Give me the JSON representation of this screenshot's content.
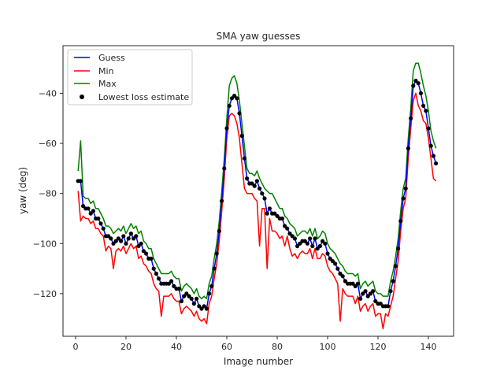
{
  "chart_data": {
    "type": "line",
    "title": "SMA yaw guesses",
    "xlabel": "Image number",
    "ylabel": "yaw (deg)",
    "xlim": [
      -5,
      150
    ],
    "ylim": [
      -137,
      -21
    ],
    "x_ticks": [
      0,
      20,
      40,
      60,
      80,
      100,
      120,
      140
    ],
    "y_ticks": [
      -120,
      -100,
      -80,
      -60,
      -40
    ],
    "x_tick_labels": [
      "0",
      "20",
      "40",
      "60",
      "80",
      "100",
      "120",
      "140"
    ],
    "y_tick_labels": [
      "−120",
      "−100",
      "−80",
      "−60",
      "−40"
    ],
    "grid": false,
    "legend_position": "top-left",
    "x": [
      1,
      2,
      3,
      4,
      5,
      6,
      7,
      8,
      9,
      10,
      11,
      12,
      13,
      14,
      15,
      16,
      17,
      18,
      19,
      20,
      21,
      22,
      23,
      24,
      25,
      26,
      27,
      28,
      29,
      30,
      31,
      32,
      33,
      34,
      35,
      36,
      37,
      38,
      39,
      40,
      41,
      42,
      43,
      44,
      45,
      46,
      47,
      48,
      49,
      50,
      51,
      52,
      53,
      54,
      55,
      56,
      57,
      58,
      59,
      60,
      61,
      62,
      63,
      64,
      65,
      66,
      67,
      68,
      69,
      70,
      71,
      72,
      73,
      74,
      75,
      76,
      77,
      78,
      79,
      80,
      81,
      82,
      83,
      84,
      85,
      86,
      87,
      88,
      89,
      90,
      91,
      92,
      93,
      94,
      95,
      96,
      97,
      98,
      99,
      100,
      101,
      102,
      103,
      104,
      105,
      106,
      107,
      108,
      109,
      110,
      111,
      112,
      113,
      114,
      115,
      116,
      117,
      118,
      119,
      120,
      121,
      122,
      123,
      124,
      125,
      126,
      127,
      128,
      129,
      130,
      131,
      132,
      133,
      134,
      135,
      136,
      137,
      138,
      139,
      140,
      141,
      142,
      143
    ],
    "series": [
      {
        "name": "Guess",
        "color": "#0000ff",
        "kind": "line",
        "values": [
          -75,
          -75,
          -85,
          -86,
          -86,
          -88,
          -87,
          -90,
          -90,
          -92,
          -94,
          -97,
          -97,
          -98,
          -100,
          -99,
          -98,
          -99,
          -97,
          -100,
          -98,
          -96,
          -98,
          -97,
          -101,
          -100,
          -103,
          -104,
          -106,
          -106,
          -110,
          -112,
          -114,
          -116,
          -116,
          -116,
          -116,
          -115,
          -117,
          -118,
          -118,
          -123,
          -121,
          -120,
          -121,
          -122,
          -124,
          -122,
          -125,
          -126,
          -125,
          -126,
          -120,
          -117,
          -110,
          -104,
          -95,
          -83,
          -70,
          -54,
          -45,
          -42,
          -41,
          -42,
          -48,
          -57,
          -66,
          -74,
          -76,
          -76,
          -77,
          -75,
          -78,
          -80,
          -82,
          -88,
          -86,
          -88,
          -88,
          -89,
          -90,
          -90,
          -93,
          -94,
          -96,
          -97,
          -98,
          -101,
          -100,
          -99,
          -99,
          -100,
          -98,
          -101,
          -98,
          -102,
          -101,
          -99,
          -100,
          -104,
          -106,
          -107,
          -108,
          -110,
          -112,
          -113,
          -115,
          -116,
          -116,
          -116,
          -117,
          -116,
          -122,
          -120,
          -119,
          -121,
          -120,
          -119,
          -123,
          -124,
          -124,
          -125,
          -125,
          -125,
          -119,
          -115,
          -109,
          -102,
          -91,
          -82,
          -78,
          -62,
          -50,
          -37,
          -35,
          -36,
          -40,
          -45,
          -47,
          -54,
          -61,
          -65,
          -68
        ]
      },
      {
        "name": "Min",
        "color": "#ff0000",
        "kind": "line",
        "values": [
          -79,
          -91,
          -89,
          -90,
          -90,
          -92,
          -91,
          -94,
          -94,
          -96,
          -97,
          -103,
          -101,
          -102,
          -110,
          -103,
          -102,
          -103,
          -101,
          -104,
          -102,
          -100,
          -102,
          -101,
          -106,
          -105,
          -108,
          -109,
          -111,
          -112,
          -116,
          -118,
          -119,
          -129,
          -121,
          -121,
          -121,
          -120,
          -122,
          -123,
          -123,
          -128,
          -126,
          -125,
          -126,
          -127,
          -129,
          -127,
          -130,
          -131,
          -130,
          -132,
          -124,
          -121,
          -114,
          -108,
          -99,
          -87,
          -74,
          -58,
          -49,
          -48,
          -49,
          -52,
          -58,
          -68,
          -78,
          -80,
          -80,
          -80,
          -82,
          -83,
          -101,
          -86,
          -86,
          -110,
          -90,
          -95,
          -95,
          -96,
          -98,
          -97,
          -101,
          -97,
          -102,
          -105,
          -104,
          -106,
          -104,
          -103,
          -104,
          -104,
          -102,
          -106,
          -102,
          -106,
          -106,
          -104,
          -105,
          -109,
          -111,
          -112,
          -114,
          -116,
          -131,
          -118,
          -120,
          -121,
          -121,
          -121,
          -124,
          -121,
          -127,
          -125,
          -124,
          -127,
          -125,
          -124,
          -129,
          -128,
          -128,
          -134,
          -128,
          -129,
          -125,
          -121,
          -114,
          -107,
          -95,
          -86,
          -82,
          -66,
          -54,
          -43,
          -40,
          -45,
          -47,
          -51,
          -52,
          -58,
          -66,
          -74,
          -75
        ]
      },
      {
        "name": "Max",
        "color": "#008000",
        "kind": "line",
        "values": [
          -71,
          -59,
          -81,
          -82,
          -82,
          -84,
          -83,
          -86,
          -86,
          -88,
          -90,
          -93,
          -93,
          -94,
          -96,
          -95,
          -94,
          -95,
          -93,
          -96,
          -94,
          -92,
          -94,
          -93,
          -96,
          -95,
          -99,
          -100,
          -102,
          -102,
          -106,
          -108,
          -110,
          -112,
          -112,
          -112,
          -112,
          -111,
          -113,
          -114,
          -114,
          -119,
          -117,
          -116,
          -117,
          -118,
          -120,
          -118,
          -121,
          -122,
          -121,
          -122,
          -116,
          -113,
          -106,
          -100,
          -91,
          -79,
          -66,
          -50,
          -37,
          -34,
          -33,
          -36,
          -43,
          -52,
          -61,
          -70,
          -72,
          -72,
          -73,
          -71,
          -74,
          -76,
          -78,
          -79,
          -80,
          -80,
          -82,
          -84,
          -86,
          -86,
          -89,
          -90,
          -92,
          -93,
          -94,
          -97,
          -96,
          -95,
          -95,
          -96,
          -94,
          -97,
          -94,
          -98,
          -97,
          -95,
          -96,
          -100,
          -102,
          -103,
          -104,
          -106,
          -108,
          -109,
          -111,
          -112,
          -112,
          -112,
          -113,
          -112,
          -118,
          -116,
          -115,
          -117,
          -116,
          -115,
          -119,
          -120,
          -120,
          -121,
          -121,
          -121,
          -115,
          -111,
          -105,
          -98,
          -87,
          -78,
          -74,
          -58,
          -46,
          -31,
          -28,
          -28,
          -32,
          -37,
          -41,
          -47,
          -55,
          -59,
          -62
        ]
      },
      {
        "name": "Lowest loss estimate",
        "color": "#000000",
        "kind": "scatter",
        "values": [
          -75,
          -75,
          -85,
          -86,
          -86,
          -88,
          -87,
          -90,
          -90,
          -92,
          -94,
          -97,
          -97,
          -98,
          -100,
          -99,
          -98,
          -99,
          -97,
          -100,
          -98,
          -96,
          -98,
          -97,
          -101,
          -100,
          -103,
          -104,
          -106,
          -106,
          -110,
          -112,
          -114,
          -116,
          -116,
          -116,
          -116,
          -115,
          -117,
          -118,
          -118,
          -123,
          -121,
          -120,
          -121,
          -122,
          -124,
          -122,
          -125,
          -126,
          -125,
          -126,
          -120,
          -117,
          -110,
          -104,
          -95,
          -83,
          -70,
          -54,
          -45,
          -42,
          -41,
          -42,
          -48,
          -57,
          -66,
          -74,
          -76,
          -76,
          -77,
          -75,
          -78,
          -80,
          -82,
          -88,
          -86,
          -88,
          -88,
          -89,
          -90,
          -90,
          -93,
          -94,
          -96,
          -97,
          -98,
          -101,
          -100,
          -99,
          -99,
          -100,
          -98,
          -101,
          -98,
          -102,
          -101,
          -99,
          -100,
          -104,
          -106,
          -107,
          -108,
          -110,
          -112,
          -113,
          -115,
          -116,
          -116,
          -116,
          -117,
          -116,
          -122,
          -120,
          -119,
          -121,
          -120,
          -119,
          -123,
          -124,
          -124,
          -125,
          -125,
          -125,
          -119,
          -115,
          -109,
          -102,
          -91,
          -82,
          -78,
          -62,
          -50,
          -37,
          -35,
          -36,
          -40,
          -45,
          -47,
          -54,
          -61,
          -65,
          -68
        ]
      }
    ]
  }
}
